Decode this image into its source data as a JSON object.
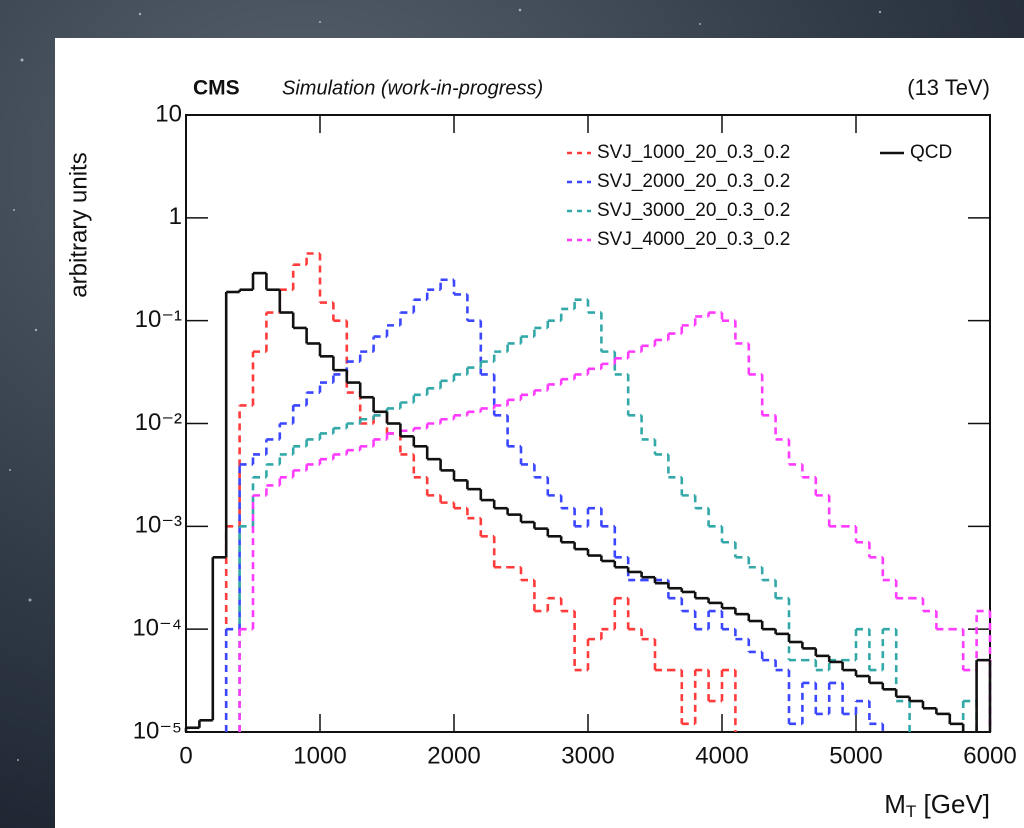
{
  "chart_data": {
    "type": "histogram",
    "experiment": "CMS",
    "subtitle": "Simulation (work-in-progress)",
    "energy": "(13 TeV)",
    "ylabel": "arbitrary units",
    "xlabel": [
      "M",
      "T",
      " [GeV]"
    ],
    "yscale": "log",
    "xlim": [
      0,
      6000
    ],
    "ylim": [
      1e-05,
      10
    ],
    "xticks": [
      0,
      1000,
      2000,
      3000,
      4000,
      5000,
      6000
    ],
    "yticks": [
      {
        "value": 1e-05,
        "label": "10⁻⁵"
      },
      {
        "value": 0.0001,
        "label": "10⁻⁴"
      },
      {
        "value": 0.001,
        "label": "10⁻³"
      },
      {
        "value": 0.01,
        "label": "10⁻²"
      },
      {
        "value": 0.1,
        "label": "10⁻¹"
      },
      1,
      10
    ],
    "bins": [
      0,
      100,
      200,
      300,
      400,
      500,
      600,
      700,
      800,
      900,
      1000,
      1100,
      1200,
      1300,
      1400,
      1500,
      1600,
      1700,
      1800,
      1900,
      2000,
      2100,
      2200,
      2300,
      2400,
      2500,
      2600,
      2700,
      2800,
      2900,
      3000,
      3100,
      3200,
      3300,
      3400,
      3500,
      3600,
      3700,
      3800,
      3900,
      4000,
      4100,
      4200,
      4300,
      4400,
      4500,
      4600,
      4700,
      4800,
      4900,
      5000,
      5100,
      5200,
      5300,
      5400,
      5500,
      5600,
      5700,
      5800,
      5900,
      6000
    ],
    "legend": "upper right",
    "series": [
      {
        "name": "SVJ_1000_20_0.3_0.2",
        "color": "#ff3b3b",
        "linestyle": "dashed",
        "values": [
          null,
          null,
          null,
          0.001,
          0.015,
          0.05,
          0.12,
          0.2,
          0.35,
          0.45,
          0.15,
          0.1,
          0.02,
          0.01,
          0.012,
          0.008,
          0.005,
          0.003,
          0.002,
          0.0017,
          0.0015,
          0.0012,
          0.0008,
          0.0004,
          0.0004,
          0.0003,
          0.00015,
          0.0002,
          0.00015,
          4e-05,
          8e-05,
          0.0001,
          0.0002,
          0.0001,
          8e-05,
          4e-05,
          4e-05,
          1.2e-05,
          4e-05,
          2e-05,
          4e-05,
          null,
          null,
          null,
          null,
          null,
          null,
          null,
          null,
          null,
          null,
          null,
          null,
          null,
          null,
          null,
          null,
          null,
          null,
          null
        ]
      },
      {
        "name": "SVJ_2000_20_0.3_0.2",
        "color": "#3a46ff",
        "linestyle": "dashed",
        "values": [
          null,
          null,
          null,
          0.0001,
          0.004,
          0.005,
          0.007,
          0.01,
          0.015,
          0.02,
          0.025,
          0.03,
          0.04,
          0.05,
          0.07,
          0.09,
          0.12,
          0.16,
          0.2,
          0.25,
          0.18,
          0.1,
          0.03,
          0.012,
          0.006,
          0.004,
          0.003,
          0.002,
          0.0015,
          0.001,
          0.0015,
          0.001,
          0.0005,
          0.0003,
          0.0003,
          0.0003,
          0.0002,
          0.00015,
          0.0001,
          0.00015,
          0.0001,
          8e-05,
          6e-05,
          5e-05,
          4e-05,
          1.2e-05,
          3e-05,
          1.5e-05,
          3e-05,
          1.5e-05,
          2e-05,
          1.2e-05,
          null,
          null,
          null,
          null,
          null,
          null,
          null,
          null
        ]
      },
      {
        "name": "SVJ_3000_20_0.3_0.2",
        "color": "#33a8a8",
        "linestyle": "dashed",
        "values": [
          null,
          null,
          null,
          null,
          0.001,
          0.003,
          0.004,
          0.005,
          0.006,
          0.007,
          0.008,
          0.009,
          0.01,
          0.011,
          0.012,
          0.014,
          0.016,
          0.019,
          0.022,
          0.026,
          0.03,
          0.035,
          0.04,
          0.05,
          0.06,
          0.07,
          0.085,
          0.1,
          0.13,
          0.16,
          0.12,
          0.05,
          0.03,
          0.012,
          0.007,
          0.005,
          0.003,
          0.002,
          0.0015,
          0.001,
          0.0007,
          0.0005,
          0.0004,
          0.0003,
          0.0002,
          5e-05,
          5e-05,
          4e-05,
          5e-05,
          5e-05,
          0.0001,
          4e-05,
          0.0001,
          2e-05,
          null,
          null,
          null,
          null,
          2e-05,
          null
        ]
      },
      {
        "name": "SVJ_4000_20_0.3_0.2",
        "color": "#ff3bff",
        "linestyle": "dashed",
        "values": [
          null,
          null,
          null,
          null,
          0.0001,
          0.002,
          0.0025,
          0.003,
          0.0035,
          0.004,
          0.0045,
          0.005,
          0.0055,
          0.006,
          0.007,
          0.008,
          0.0085,
          0.009,
          0.01,
          0.011,
          0.012,
          0.013,
          0.014,
          0.015,
          0.017,
          0.019,
          0.021,
          0.024,
          0.027,
          0.03,
          0.034,
          0.038,
          0.043,
          0.05,
          0.057,
          0.065,
          0.075,
          0.09,
          0.11,
          0.12,
          0.1,
          0.06,
          0.03,
          0.012,
          0.007,
          0.004,
          0.003,
          0.002,
          0.001,
          0.001,
          0.0007,
          0.0005,
          0.0003,
          0.0002,
          0.0002,
          0.00015,
          0.0001,
          0.0001,
          4e-05,
          0.00015
        ]
      },
      {
        "name": "QCD",
        "color": "#111111",
        "linestyle": "solid",
        "values": [
          1.1e-05,
          1.3e-05,
          0.0005,
          0.19,
          0.2,
          0.29,
          0.2,
          0.12,
          0.085,
          0.06,
          0.045,
          0.033,
          0.025,
          0.018,
          0.013,
          0.01,
          0.0075,
          0.006,
          0.0045,
          0.0035,
          0.0028,
          0.0023,
          0.0018,
          0.0015,
          0.0013,
          0.0011,
          0.00095,
          0.0008,
          0.0007,
          0.0006,
          0.00052,
          0.00046,
          0.0004,
          0.00036,
          0.00032,
          0.00028,
          0.00025,
          0.00023,
          0.0002,
          0.00018,
          0.00016,
          0.00014,
          0.00012,
          0.0001,
          9e-05,
          7.5e-05,
          6.5e-05,
          5.5e-05,
          4.8e-05,
          4e-05,
          3.5e-05,
          3e-05,
          2.6e-05,
          2.2e-05,
          2e-05,
          1.7e-05,
          1.5e-05,
          1.2e-05,
          null,
          5e-05
        ]
      }
    ]
  }
}
